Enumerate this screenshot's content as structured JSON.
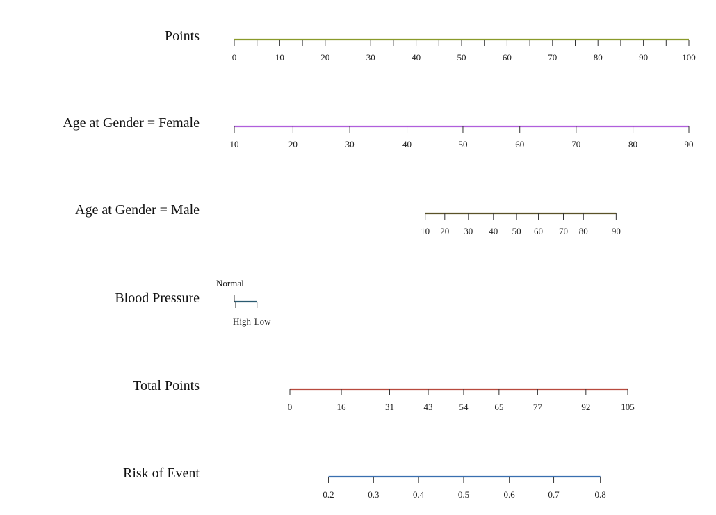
{
  "chart_data": {
    "type": "nomogram",
    "rows": [
      {
        "label": "Points",
        "axis": "points",
        "color": "#8a9a2a",
        "ticks": [
          0,
          10,
          20,
          30,
          40,
          50,
          60,
          70,
          80,
          90,
          100
        ],
        "minor_ticks": [
          5,
          15,
          25,
          35,
          45,
          55,
          65,
          75,
          85,
          95
        ],
        "range": [
          0,
          100
        ]
      },
      {
        "label": "Age at Gender = Female",
        "axis": "points",
        "color": "#b05fdc",
        "ticks": [
          {
            "label": "10",
            "points": 0
          },
          {
            "label": "20",
            "points": 12.9
          },
          {
            "label": "30",
            "points": 25.4
          },
          {
            "label": "40",
            "points": 38.0
          },
          {
            "label": "50",
            "points": 50.3
          },
          {
            "label": "60",
            "points": 62.8
          },
          {
            "label": "70",
            "points": 75.2
          },
          {
            "label": "80",
            "points": 87.7
          },
          {
            "label": "90",
            "points": 100
          }
        ]
      },
      {
        "label": "Age at Gender = Male",
        "axis": "points",
        "color": "#5a5228",
        "ticks": [
          {
            "label": "10",
            "points": 42.0
          },
          {
            "label": "20",
            "points": 46.3
          },
          {
            "label": "30",
            "points": 51.5
          },
          {
            "label": "40",
            "points": 57.0
          },
          {
            "label": "50",
            "points": 62.1
          },
          {
            "label": "60",
            "points": 66.9
          },
          {
            "label": "70",
            "points": 72.4
          },
          {
            "label": "80",
            "points": 76.8
          },
          {
            "label": "90",
            "points": 84.0
          }
        ]
      },
      {
        "label": "Blood Pressure",
        "axis": "points",
        "color": "#2a5a70",
        "ticks": [
          {
            "label": "Normal",
            "points": 0,
            "side": "above"
          },
          {
            "label": "High",
            "points": 0.3,
            "side": "below"
          },
          {
            "label": "Low",
            "points": 5.0,
            "side": "below"
          }
        ]
      },
      {
        "label": "Total Points",
        "axis": "total",
        "color": "#b84a3e",
        "ticks": [
          0,
          16,
          31,
          43,
          54,
          65,
          77,
          92,
          105
        ]
      },
      {
        "label": "Risk of Event",
        "axis": "total",
        "color": "#3a6fb0",
        "ticks": [
          {
            "label": "0.2",
            "total": 12.0
          },
          {
            "label": "0.3",
            "total": 26.0
          },
          {
            "label": "0.4",
            "total": 40.0
          },
          {
            "label": "0.5",
            "total": 54.0
          },
          {
            "label": "0.6",
            "total": 68.2
          },
          {
            "label": "0.7",
            "total": 82.0
          },
          {
            "label": "0.8",
            "total": 96.5
          }
        ]
      }
    ]
  }
}
